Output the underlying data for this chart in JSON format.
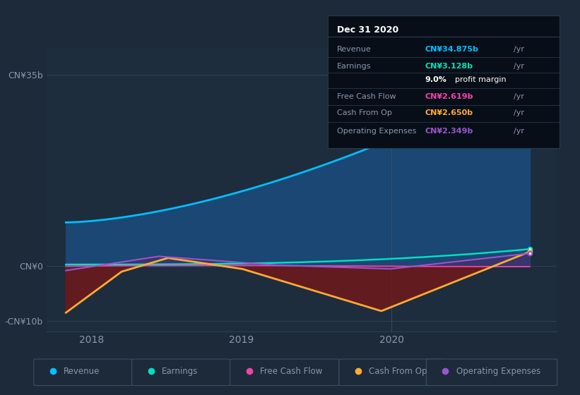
{
  "bg_color": "#1c2a3a",
  "plot_bg_color": "#1e2d3d",
  "grid_color": "#2d4055",
  "text_color": "#8899aa",
  "ylim": [
    -12,
    40
  ],
  "xlim_start": 2017.7,
  "xlim_end": 2021.1,
  "ytick_vals": [
    -10,
    0,
    35
  ],
  "ytick_labels": [
    "-CN¥10b",
    "CN¥0",
    "CN¥35b"
  ],
  "xtick_positions": [
    2018,
    2019,
    2020
  ],
  "xtick_labels": [
    "2018",
    "2019",
    "2020"
  ],
  "revenue_color": "#00bfff",
  "revenue_fill": "#1a4a7a",
  "earnings_color": "#00e0c0",
  "fcf_color": "#ee44aa",
  "cashop_color": "#ffaa33",
  "opex_color": "#9955cc",
  "cashop_fill": "#7a1515",
  "opex_fill_pos": "#4a2a6a",
  "opex_fill_neg": "#3a3560",
  "legend_items": [
    {
      "label": "Revenue",
      "color": "#00bfff"
    },
    {
      "label": "Earnings",
      "color": "#00e0c0"
    },
    {
      "label": "Free Cash Flow",
      "color": "#ee44aa"
    },
    {
      "label": "Cash From Op",
      "color": "#ffaa33"
    },
    {
      "label": "Operating Expenses",
      "color": "#9955cc"
    }
  ],
  "tooltip_bg": "#080e18",
  "tooltip_border": "#2d4055",
  "tooltip_title": "Dec 31 2020",
  "vline_color": "#3a5570"
}
